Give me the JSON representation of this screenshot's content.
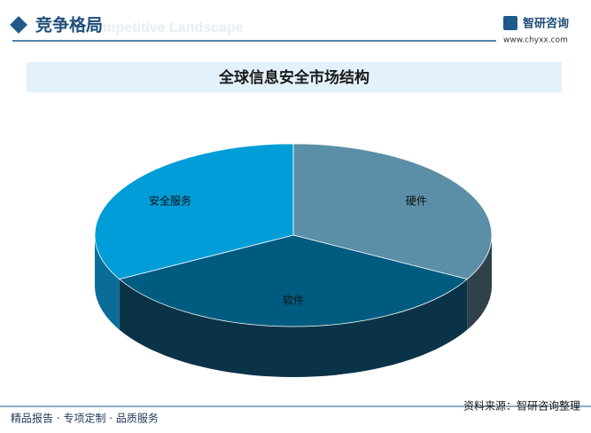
{
  "header": {
    "title": "竞争格局",
    "watermark": "Competitive Landscape",
    "brand": "智研咨询",
    "url": "www.chyxx.com"
  },
  "chart_data": {
    "type": "pie",
    "title": "全球信息安全市场结构",
    "categories": [
      "硬件",
      "软件",
      "安全服务"
    ],
    "values": [
      33,
      34,
      33
    ],
    "colors": [
      "#5b8fa8",
      "#005b80",
      "#009dd8"
    ],
    "side_colors": [
      "#2f414b",
      "#0b3348",
      "#0a6d97"
    ]
  },
  "footer": {
    "left": "精品报告 · 专项定制 · 品质服务",
    "right": "资料来源：智研咨询整理"
  }
}
